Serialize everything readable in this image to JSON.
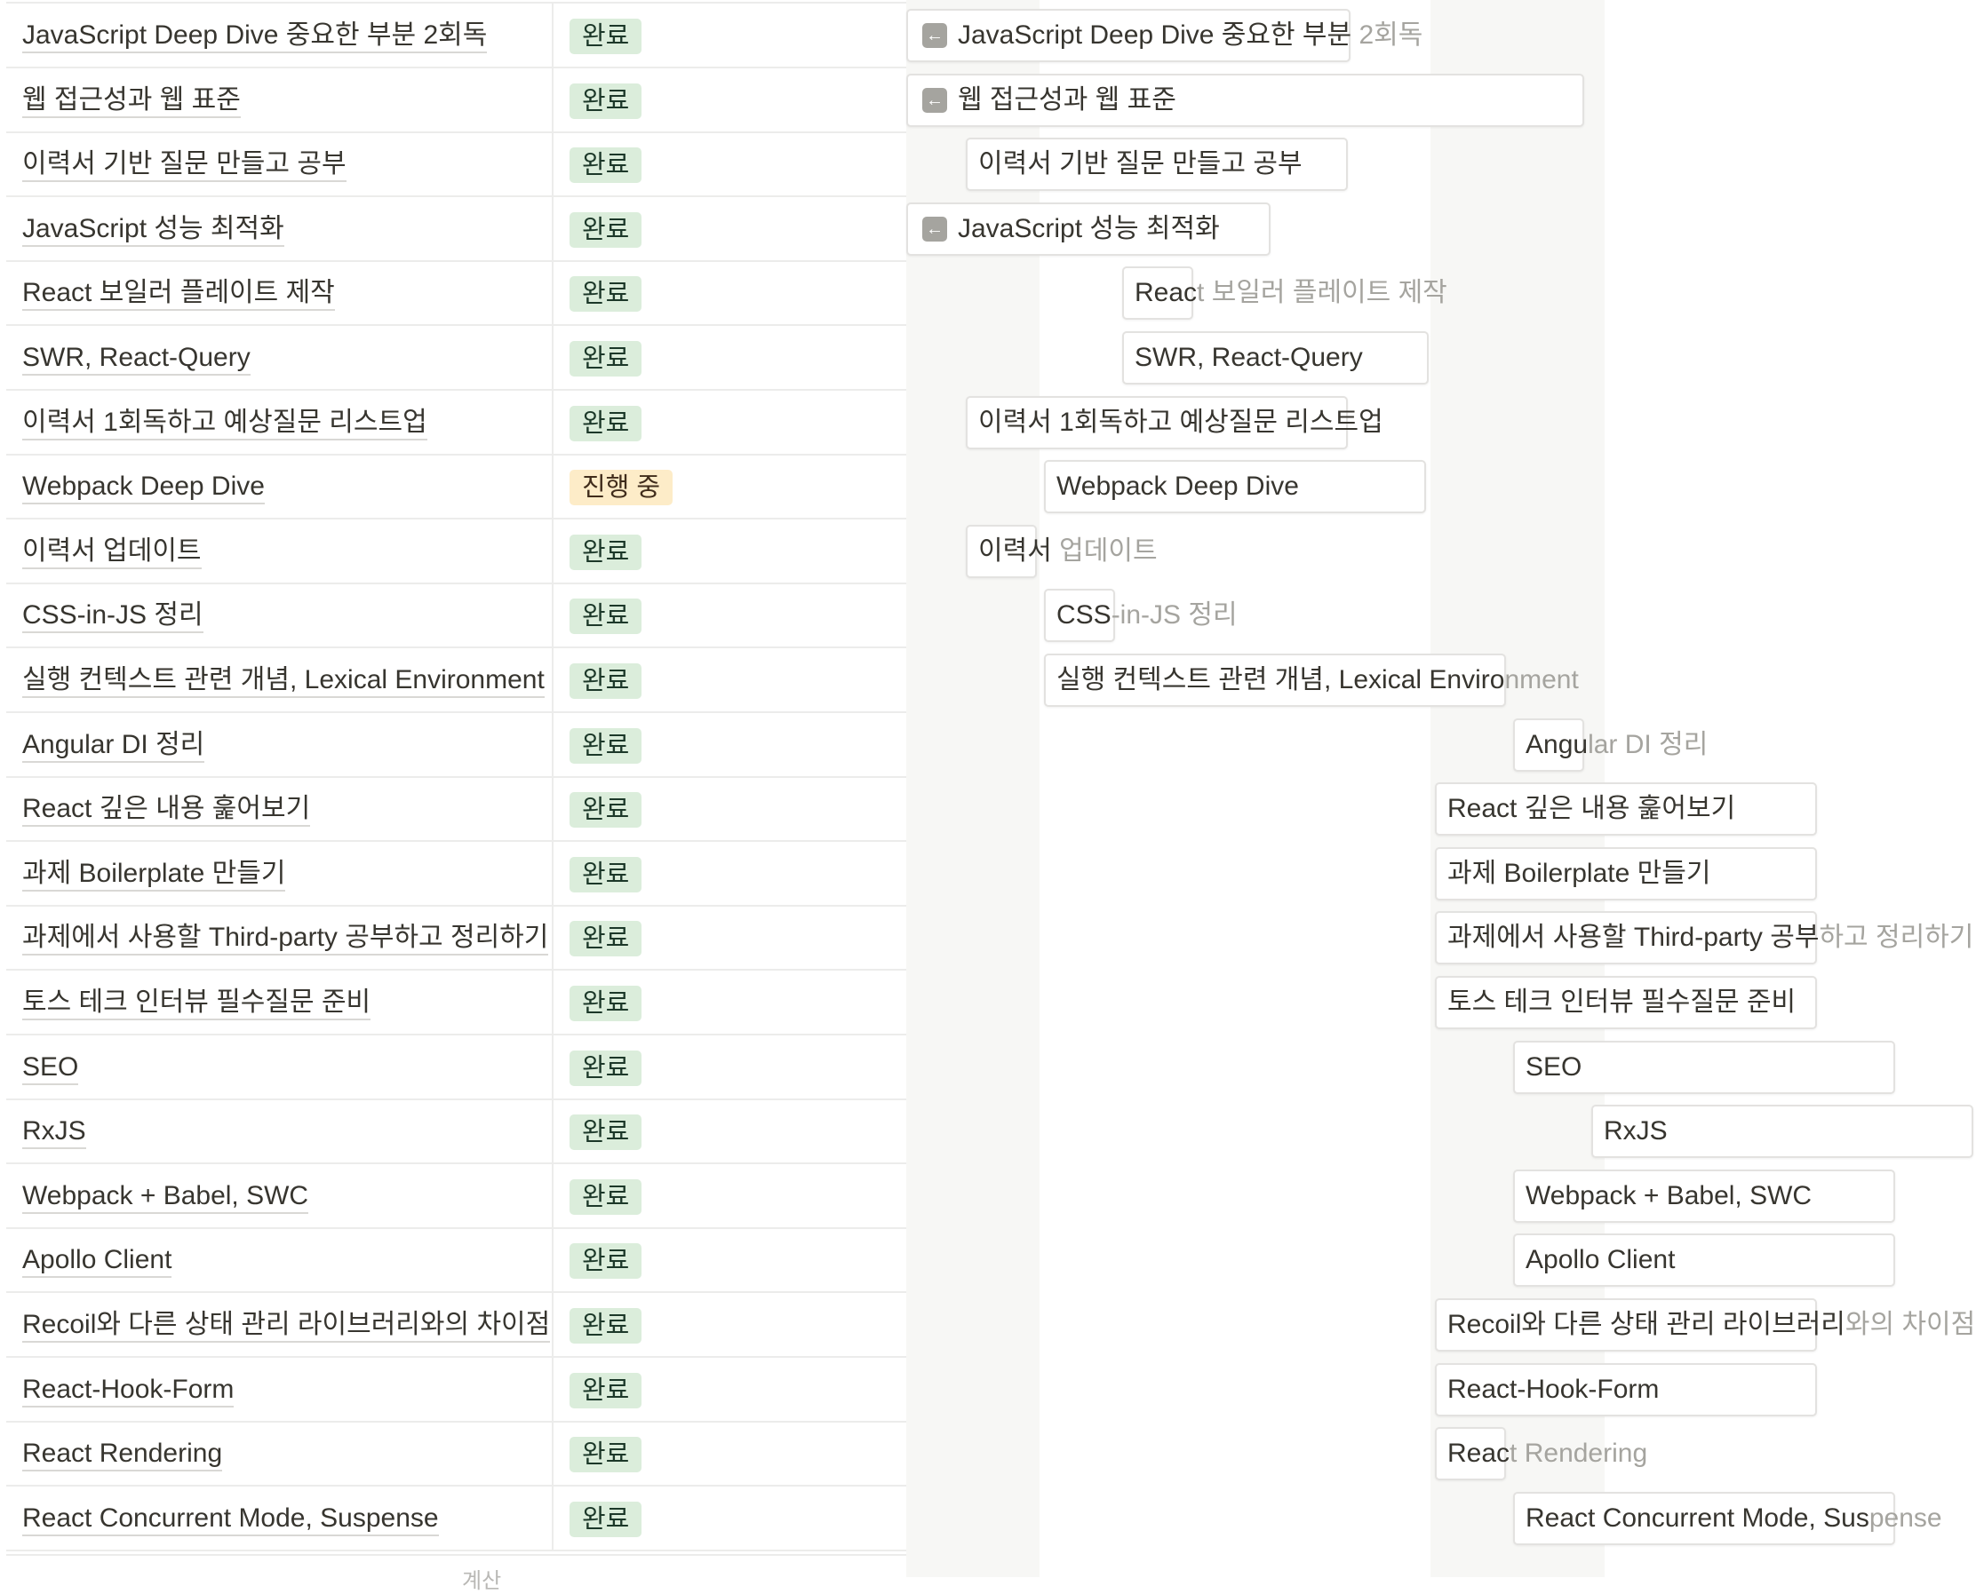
{
  "table": {
    "footer_hint": "계산",
    "rows": [
      {
        "name": "JavaScript Deep Dive 중요한 부분 2회독",
        "status": "완료",
        "state": "done"
      },
      {
        "name": "웹 접근성과 웹 표준",
        "status": "완료",
        "state": "done"
      },
      {
        "name": "이력서 기반 질문 만들고 공부",
        "status": "완료",
        "state": "done"
      },
      {
        "name": "JavaScript 성능 최적화",
        "status": "완료",
        "state": "done"
      },
      {
        "name": "React 보일러 플레이트 제작",
        "status": "완료",
        "state": "done"
      },
      {
        "name": "SWR, React-Query",
        "status": "완료",
        "state": "done"
      },
      {
        "name": "이력서 1회독하고 예상질문 리스트업",
        "status": "완료",
        "state": "done"
      },
      {
        "name": "Webpack Deep Dive",
        "status": "진행 중",
        "state": "progress"
      },
      {
        "name": "이력서 업데이트",
        "status": "완료",
        "state": "done"
      },
      {
        "name": "CSS-in-JS 정리",
        "status": "완료",
        "state": "done"
      },
      {
        "name": "실행 컨텍스트 관련 개념, Lexical Environment",
        "status": "완료",
        "state": "done"
      },
      {
        "name": "Angular DI 정리",
        "status": "완료",
        "state": "done"
      },
      {
        "name": "React 깊은 내용 훑어보기",
        "status": "완료",
        "state": "done"
      },
      {
        "name": "과제 Boilerplate 만들기",
        "status": "완료",
        "state": "done"
      },
      {
        "name": "과제에서 사용할 Third-party 공부하고 정리하기",
        "status": "완료",
        "state": "done"
      },
      {
        "name": "토스 테크 인터뷰 필수질문 준비",
        "status": "완료",
        "state": "done"
      },
      {
        "name": "SEO",
        "status": "완료",
        "state": "done"
      },
      {
        "name": "RxJS",
        "status": "완료",
        "state": "done"
      },
      {
        "name": "Webpack + Babel, SWC",
        "status": "완료",
        "state": "done"
      },
      {
        "name": "Apollo Client",
        "status": "완료",
        "state": "done"
      },
      {
        "name": "Recoil와 다른 상태 관리 라이브러리와의 차이점",
        "status": "완료",
        "state": "done"
      },
      {
        "name": "React-Hook-Form",
        "status": "완료",
        "state": "done"
      },
      {
        "name": "React Rendering",
        "status": "완료",
        "state": "done"
      },
      {
        "name": "React Concurrent Mode, Suspense",
        "status": "완료",
        "state": "done"
      }
    ]
  },
  "timeline": {
    "bars": [
      {
        "inside": "JavaScript Deep Dive 중요한 부분",
        "overflow": " 2회독",
        "arrow": true
      },
      {
        "inside": "웹 접근성과 웹 표준",
        "overflow": "",
        "arrow": true
      },
      {
        "inside": "이력서 기반 질문 만들고 공부",
        "overflow": "",
        "arrow": false
      },
      {
        "inside": "JavaScript 성능 최적화",
        "overflow": "",
        "arrow": true
      },
      {
        "inside": "Reac",
        "overflow": "t 보일러 플레이트 제작",
        "arrow": false
      },
      {
        "inside": "SWR, React-Query",
        "overflow": "",
        "arrow": false
      },
      {
        "inside": "이력서 1회독하고 예상질문 리스트업",
        "overflow": "",
        "arrow": false
      },
      {
        "inside": "Webpack Deep Dive",
        "overflow": "",
        "arrow": false
      },
      {
        "inside": "이력서",
        "overflow": " 업데이트",
        "arrow": false
      },
      {
        "inside": "CSS",
        "overflow": "-in-JS 정리",
        "arrow": false
      },
      {
        "inside": "실행 컨텍스트 관련 개념, Lexical Enviro",
        "overflow": "nment",
        "arrow": false
      },
      {
        "inside": "Angu",
        "overflow": "lar DI 정리",
        "arrow": false
      },
      {
        "inside": "React 깊은 내용 훑어보기",
        "overflow": "",
        "arrow": false
      },
      {
        "inside": "과제 Boilerplate 만들기",
        "overflow": "",
        "arrow": false
      },
      {
        "inside": "과제에서 사용할 Third-party 공부",
        "overflow": "하고 정리하기",
        "arrow": false
      },
      {
        "inside": "토스 테크 인터뷰 필수질문 준비",
        "overflow": "",
        "arrow": false
      },
      {
        "inside": "SEO",
        "overflow": "",
        "arrow": false
      },
      {
        "inside": "RxJS",
        "overflow": "",
        "arrow": false
      },
      {
        "inside": "Webpack + Babel, SWC",
        "overflow": "",
        "arrow": false
      },
      {
        "inside": "Apollo Client",
        "overflow": "",
        "arrow": false
      },
      {
        "inside": "Recoil와 다른 상태 관리 라이브러리",
        "overflow": "와의 차이점",
        "arrow": false
      },
      {
        "inside": "React-Hook-Form",
        "overflow": "",
        "arrow": false
      },
      {
        "inside": "Reac",
        "overflow": "t Rendering",
        "arrow": false
      },
      {
        "inside": "React Concurrent Mode, Sus",
        "overflow": "pense",
        "arrow": false
      }
    ]
  }
}
